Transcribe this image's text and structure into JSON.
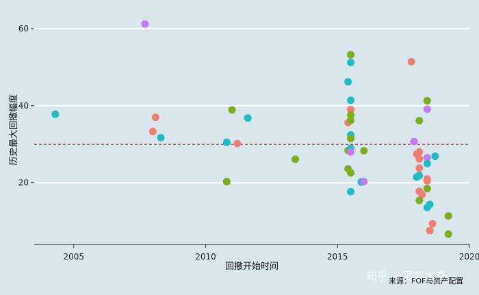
{
  "chart_data": {
    "type": "scatter",
    "xlabel": "回撤开始时间",
    "ylabel": "历史最大回撤幅度",
    "xlim": [
      2003.5,
      2020
    ],
    "ylim": [
      4,
      66
    ],
    "x_ticks": [
      2005,
      2010,
      2015,
      2020
    ],
    "y_ticks": [
      20,
      40,
      60
    ],
    "reference_line": {
      "y": 30,
      "style": "dashed",
      "color": "#b22222"
    },
    "grid": "horizontal-major",
    "legend": "none",
    "colors": {
      "red": "#f07f73",
      "green": "#7cad1a",
      "cyan": "#1fbcc6",
      "purple": "#c07cf0"
    },
    "points": [
      {
        "x": 2004.3,
        "y": 37.8,
        "color": "cyan"
      },
      {
        "x": 2007.7,
        "y": 61.2,
        "color": "purple"
      },
      {
        "x": 2008.1,
        "y": 37.0,
        "color": "red"
      },
      {
        "x": 2008.0,
        "y": 33.3,
        "color": "red"
      },
      {
        "x": 2008.3,
        "y": 31.7,
        "color": "cyan"
      },
      {
        "x": 2010.8,
        "y": 30.5,
        "color": "cyan"
      },
      {
        "x": 2011.0,
        "y": 38.9,
        "color": "green"
      },
      {
        "x": 2011.2,
        "y": 30.2,
        "color": "red"
      },
      {
        "x": 2011.6,
        "y": 36.8,
        "color": "cyan"
      },
      {
        "x": 2010.8,
        "y": 20.3,
        "color": "green"
      },
      {
        "x": 2013.4,
        "y": 26.1,
        "color": "green"
      },
      {
        "x": 2015.5,
        "y": 53.2,
        "color": "green"
      },
      {
        "x": 2015.5,
        "y": 51.2,
        "color": "cyan"
      },
      {
        "x": 2015.4,
        "y": 46.2,
        "color": "cyan"
      },
      {
        "x": 2015.5,
        "y": 41.4,
        "color": "cyan"
      },
      {
        "x": 2015.5,
        "y": 39.0,
        "color": "red"
      },
      {
        "x": 2015.5,
        "y": 37.6,
        "color": "green"
      },
      {
        "x": 2015.4,
        "y": 35.6,
        "color": "red"
      },
      {
        "x": 2015.5,
        "y": 36.2,
        "color": "green"
      },
      {
        "x": 2015.5,
        "y": 32.4,
        "color": "cyan"
      },
      {
        "x": 2015.5,
        "y": 31.5,
        "color": "green"
      },
      {
        "x": 2015.4,
        "y": 28.4,
        "color": "green"
      },
      {
        "x": 2015.5,
        "y": 29.0,
        "color": "cyan"
      },
      {
        "x": 2015.5,
        "y": 28.0,
        "color": "purple"
      },
      {
        "x": 2016.0,
        "y": 28.3,
        "color": "green"
      },
      {
        "x": 2015.4,
        "y": 23.6,
        "color": "green"
      },
      {
        "x": 2015.5,
        "y": 22.6,
        "color": "green"
      },
      {
        "x": 2015.9,
        "y": 20.2,
        "color": "cyan"
      },
      {
        "x": 2016.0,
        "y": 20.3,
        "color": "purple"
      },
      {
        "x": 2015.5,
        "y": 17.7,
        "color": "cyan"
      },
      {
        "x": 2017.8,
        "y": 51.4,
        "color": "red"
      },
      {
        "x": 2018.4,
        "y": 41.3,
        "color": "green"
      },
      {
        "x": 2018.4,
        "y": 39.1,
        "color": "purple"
      },
      {
        "x": 2018.1,
        "y": 36.1,
        "color": "green"
      },
      {
        "x": 2017.9,
        "y": 30.7,
        "color": "purple"
      },
      {
        "x": 2018.1,
        "y": 28.0,
        "color": "red"
      },
      {
        "x": 2018.0,
        "y": 27.5,
        "color": "red"
      },
      {
        "x": 2018.1,
        "y": 26.2,
        "color": "red"
      },
      {
        "x": 2018.4,
        "y": 26.5,
        "color": "purple"
      },
      {
        "x": 2018.7,
        "y": 26.9,
        "color": "cyan"
      },
      {
        "x": 2018.4,
        "y": 25.0,
        "color": "cyan"
      },
      {
        "x": 2018.1,
        "y": 23.8,
        "color": "red"
      },
      {
        "x": 2018.1,
        "y": 21.9,
        "color": "cyan"
      },
      {
        "x": 2018.0,
        "y": 21.5,
        "color": "cyan"
      },
      {
        "x": 2018.4,
        "y": 21.0,
        "color": "red"
      },
      {
        "x": 2018.4,
        "y": 20.5,
        "color": "red"
      },
      {
        "x": 2018.4,
        "y": 18.5,
        "color": "green"
      },
      {
        "x": 2018.1,
        "y": 17.8,
        "color": "red"
      },
      {
        "x": 2018.2,
        "y": 16.9,
        "color": "red"
      },
      {
        "x": 2018.1,
        "y": 15.4,
        "color": "green"
      },
      {
        "x": 2018.5,
        "y": 14.4,
        "color": "cyan"
      },
      {
        "x": 2018.4,
        "y": 13.6,
        "color": "cyan"
      },
      {
        "x": 2019.2,
        "y": 11.4,
        "color": "green"
      },
      {
        "x": 2018.6,
        "y": 9.4,
        "color": "red"
      },
      {
        "x": 2018.5,
        "y": 7.6,
        "color": "red"
      },
      {
        "x": 2019.2,
        "y": 6.7,
        "color": "green"
      }
    ]
  },
  "watermark": "知乎 @吴若木鸡",
  "source_note": "来源：FOF与资产配置"
}
